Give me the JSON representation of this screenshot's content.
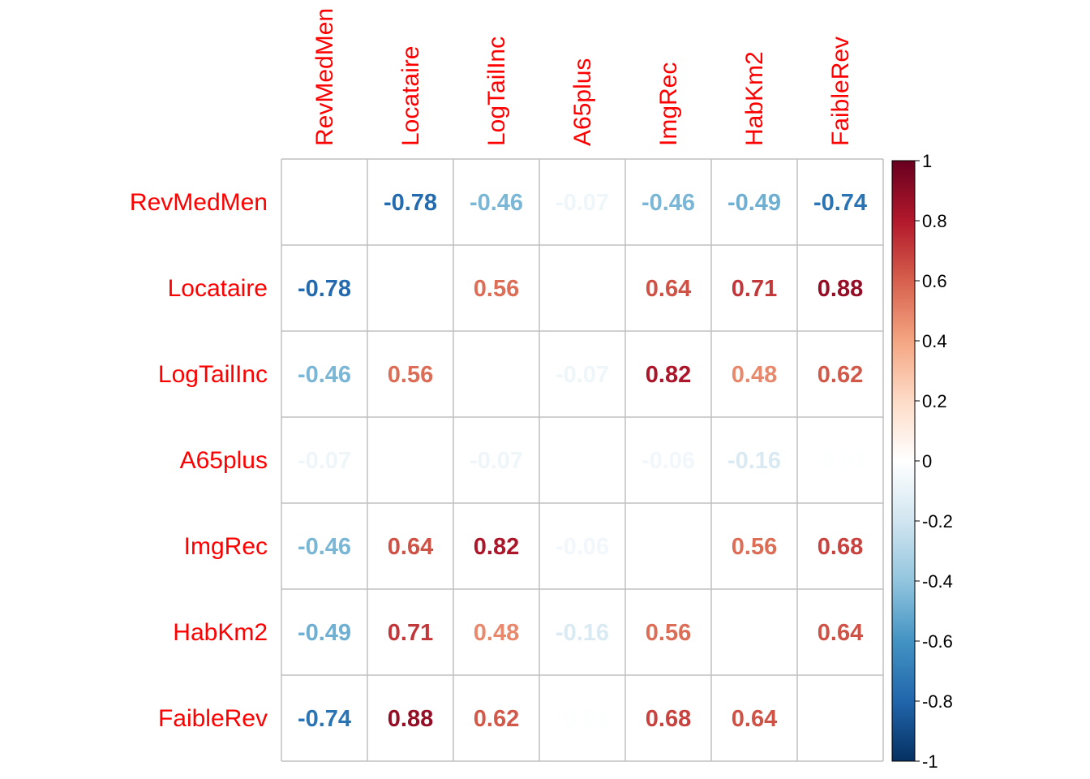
{
  "chart_data": {
    "type": "heatmap",
    "variables": [
      "RevMedMen",
      "Locataire",
      "LogTailInc",
      "A65plus",
      "ImgRec",
      "HabKm2",
      "FaibleRev"
    ],
    "matrix": [
      [
        null,
        -0.78,
        -0.46,
        -0.07,
        -0.46,
        -0.49,
        -0.74
      ],
      [
        -0.78,
        null,
        0.56,
        0.0,
        0.64,
        0.71,
        0.88
      ],
      [
        -0.46,
        0.56,
        null,
        -0.07,
        0.82,
        0.48,
        0.62
      ],
      [
        -0.07,
        0.0,
        -0.07,
        null,
        -0.06,
        -0.16,
        -0.01
      ],
      [
        -0.46,
        0.64,
        0.82,
        -0.06,
        null,
        0.56,
        0.68
      ],
      [
        -0.49,
        0.71,
        0.48,
        -0.16,
        0.56,
        null,
        0.64
      ],
      [
        -0.74,
        0.88,
        0.62,
        -0.01,
        0.68,
        0.64,
        null
      ]
    ],
    "value_labels": [
      [
        "",
        "-0.78",
        "-0.46",
        "-0.07",
        "-0.46",
        "-0.49",
        "-0.74"
      ],
      [
        "-0.78",
        "",
        "0.56",
        "0.00",
        "0.64",
        "0.71",
        "0.88"
      ],
      [
        "-0.46",
        "0.56",
        "",
        "-0.07",
        "0.82",
        "0.48",
        "0.62"
      ],
      [
        "-0.07",
        "0.00",
        "-0.07",
        "",
        "-0.06",
        "-0.16",
        "-0.01"
      ],
      [
        "-0.46",
        "0.64",
        "0.82",
        "-0.06",
        "",
        "0.56",
        "0.68"
      ],
      [
        "-0.49",
        "0.71",
        "0.48",
        "-0.16",
        "0.56",
        "",
        "0.64"
      ],
      [
        "-0.74",
        "0.88",
        "0.62",
        "-0.01",
        "0.68",
        "0.64",
        ""
      ]
    ],
    "colorbar": {
      "range": [
        -1,
        1
      ],
      "ticks": [
        1,
        0.8,
        0.6,
        0.4,
        0.2,
        0,
        -0.2,
        -0.4,
        -0.6,
        -0.8,
        -1
      ],
      "tick_labels": [
        "1",
        "0.8",
        "0.6",
        "0.4",
        "0.2",
        "0",
        "-0.2",
        "-0.4",
        "-0.6",
        "-0.8",
        "-1"
      ],
      "colors": [
        "#67001F",
        "#B2182B",
        "#D6604D",
        "#F4A582",
        "#FDDBC7",
        "#FFFFFF",
        "#D1E5F0",
        "#92C5DE",
        "#4393C3",
        "#2166AC",
        "#053061"
      ]
    },
    "label_color": "#FF0000",
    "grid_color": "#C0C0C0"
  }
}
